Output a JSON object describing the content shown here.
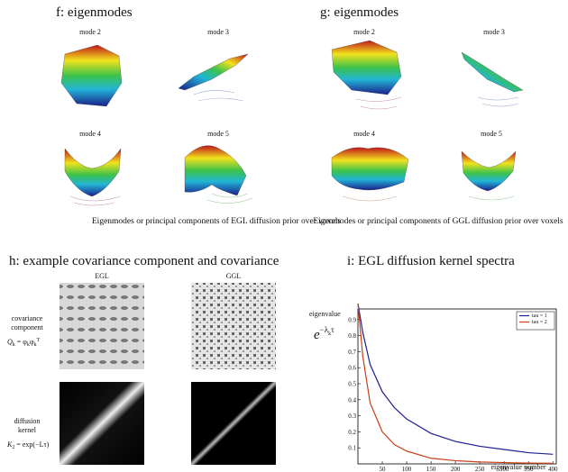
{
  "panel_f": {
    "title": "f: eigenmodes",
    "modes": [
      "mode 2",
      "mode 3",
      "mode 4",
      "mode 5"
    ],
    "caption": "Eigenmodes or principal components of EGL diffusion prior over voxels"
  },
  "panel_g": {
    "title": "g: eigenmodes",
    "modes": [
      "mode 2",
      "mode 3",
      "mode 4",
      "mode 5"
    ],
    "caption": "Eigenmodes or principal components of GGL diffusion prior over voxels"
  },
  "panel_h": {
    "title": "h: example covariance component and covariance",
    "columns": [
      "EGL",
      "GGL"
    ],
    "row1": {
      "label": [
        "covariance",
        "component"
      ],
      "formula": [
        "Q",
        "k",
        " = φ",
        "k",
        "φ",
        "k",
        "T"
      ]
    },
    "row2": {
      "label": [
        "diffusion",
        "kernel"
      ],
      "formula": [
        "K",
        "2",
        " = exp(−Lτ)"
      ]
    }
  },
  "chart_data": {
    "type": "line",
    "title": "i: EGL diffusion kernel spectra",
    "ylabel": "eigenvalue",
    "ylabel_formula": [
      "e",
      "−λ",
      "k",
      "τ"
    ],
    "xlabel": "eigenvalue number",
    "x": [
      0,
      10,
      25,
      50,
      75,
      100,
      150,
      200,
      250,
      300,
      350,
      400
    ],
    "series": [
      {
        "name": "tau = 1",
        "color": "#1f1f8f",
        "values": [
          1.0,
          0.82,
          0.62,
          0.45,
          0.35,
          0.28,
          0.19,
          0.14,
          0.11,
          0.09,
          0.07,
          0.06
        ]
      },
      {
        "name": "tau = 2",
        "color": "#c8401a",
        "values": [
          1.0,
          0.67,
          0.38,
          0.2,
          0.12,
          0.08,
          0.035,
          0.02,
          0.012,
          0.008,
          0.005,
          0.004
        ]
      }
    ],
    "xlim": [
      0,
      407
    ],
    "ylim": [
      0,
      1
    ],
    "xticks": [
      50,
      100,
      150,
      200,
      250,
      300,
      350,
      400
    ],
    "yticks": [
      0.1,
      0.2,
      0.3,
      0.4,
      0.5,
      0.6,
      0.7,
      0.8,
      0.9
    ],
    "legend": "upper-right"
  }
}
